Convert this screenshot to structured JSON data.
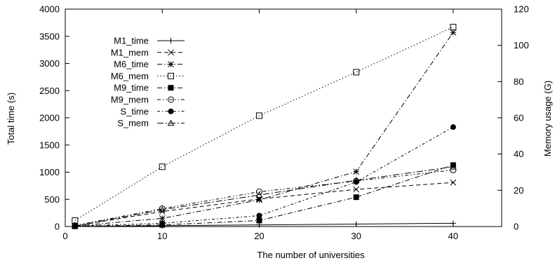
{
  "chart_data": {
    "type": "line",
    "title": "",
    "xlabel": "The number of universities",
    "ylabel": "Total time (s)",
    "y2label": "Memory usage (G)",
    "xlim": [
      0,
      45
    ],
    "ylim": [
      0,
      4000
    ],
    "y2lim": [
      0,
      120
    ],
    "xticks": [
      0,
      10,
      20,
      30,
      40
    ],
    "yticks": [
      0,
      500,
      1000,
      1500,
      2000,
      2500,
      3000,
      3500,
      4000
    ],
    "y2ticks": [
      0,
      20,
      40,
      60,
      80,
      100,
      120
    ],
    "x": [
      1,
      10,
      20,
      30,
      40
    ],
    "legend_position": "top-left",
    "grid": false,
    "series": [
      {
        "name": "M1_time",
        "axis": "left",
        "marker": "plus",
        "dash": "solid",
        "values": [
          0,
          15,
          30,
          45,
          60
        ]
      },
      {
        "name": "M1_mem",
        "axis": "right",
        "marker": "cross",
        "dash": "dashed",
        "values": [
          0.3,
          8.3,
          15.2,
          20.5,
          24.3
        ]
      },
      {
        "name": "M6_time",
        "axis": "left",
        "marker": "star",
        "dash": "dashdot",
        "values": [
          10,
          150,
          490,
          1010,
          3570
        ]
      },
      {
        "name": "M6_mem",
        "axis": "right",
        "marker": "open-square",
        "dash": "dotted",
        "values": [
          3.3,
          33,
          61.2,
          85.2,
          110.1
        ]
      },
      {
        "name": "M9_time",
        "axis": "left",
        "marker": "filled-square",
        "dash": "dashdot",
        "values": [
          5,
          30,
          110,
          540,
          1130
        ]
      },
      {
        "name": "M9_mem",
        "axis": "right",
        "marker": "open-circle",
        "dash": "dashdot2",
        "values": [
          0.6,
          9.9,
          19.2,
          25.1,
          31.2
        ]
      },
      {
        "name": "S_time",
        "axis": "left",
        "marker": "filled-circle",
        "dash": "dashdot3",
        "values": [
          10,
          60,
          200,
          820,
          1830
        ]
      },
      {
        "name": "S_mem",
        "axis": "right",
        "marker": "open-triangle",
        "dash": "dashdot4",
        "values": [
          0.3,
          9.3,
          17.4,
          25.5,
          33
        ]
      }
    ]
  }
}
